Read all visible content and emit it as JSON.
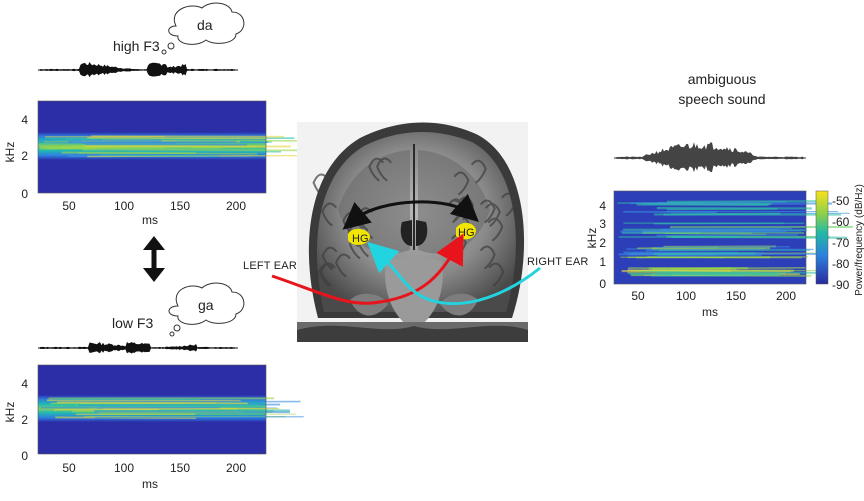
{
  "top_left": {
    "title": "high F3",
    "bubble": "da",
    "y_label": "kHz",
    "x_label": "ms",
    "y_ticks": [
      "4",
      "2",
      "0"
    ],
    "x_ticks": [
      "50",
      "100",
      "150",
      "200"
    ]
  },
  "bottom_left": {
    "title": "low F3",
    "bubble": "ga",
    "y_label": "kHz",
    "x_label": "ms",
    "y_ticks": [
      "4",
      "2",
      "0"
    ],
    "x_ticks": [
      "50",
      "100",
      "150",
      "200"
    ]
  },
  "brain": {
    "left_ear": "LEFT EAR",
    "right_ear": "RIGHT EAR",
    "hg_left": "HG",
    "hg_right": "HG"
  },
  "right_panel": {
    "title_line1": "ambiguous",
    "title_line2": "speech sound",
    "y_label": "kHz",
    "x_label": "ms",
    "y_ticks": [
      "4",
      "3",
      "2",
      "1",
      "0"
    ],
    "x_ticks": [
      "50",
      "100",
      "150",
      "200"
    ],
    "colorbar_label": "Power/frequency (dB/Hz)",
    "colorbar_ticks": [
      "-50",
      "-60",
      "-70",
      "-80",
      "-90"
    ]
  },
  "colors": {
    "spectro_bg": "#2c2ea8",
    "left_ear_arrow": "#e8141b",
    "right_ear_arrow": "#22d3e0",
    "hg_highlight": "#f2e600"
  }
}
